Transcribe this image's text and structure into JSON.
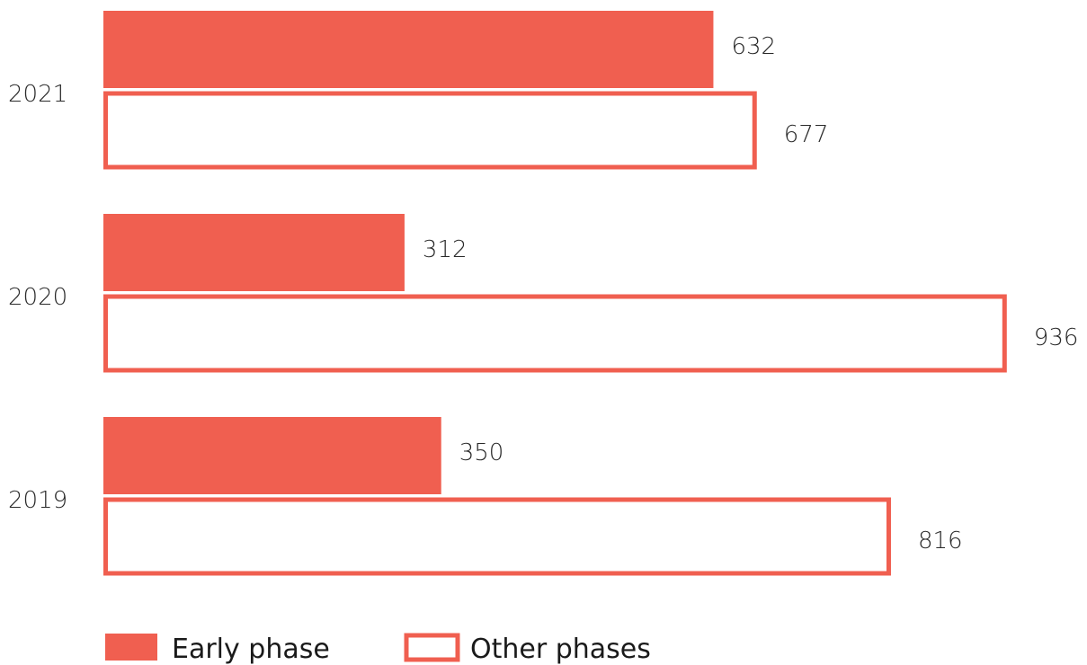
{
  "chart_data": {
    "type": "bar",
    "orientation": "horizontal",
    "categories": [
      "2021",
      "2020",
      "2019"
    ],
    "series": [
      {
        "name": "Early phase",
        "values": [
          632,
          312,
          350
        ],
        "style": "filled"
      },
      {
        "name": "Other phases",
        "values": [
          677,
          936,
          816
        ],
        "style": "outline"
      }
    ],
    "title": "",
    "xlabel": "",
    "ylabel": "",
    "xlim": [
      0,
      936
    ],
    "grid": false,
    "legend_position": "bottom-left",
    "data_labels": true
  },
  "colors": {
    "accent": "#f05f50",
    "text": "#2a2a2a",
    "background": "#ffffff"
  }
}
